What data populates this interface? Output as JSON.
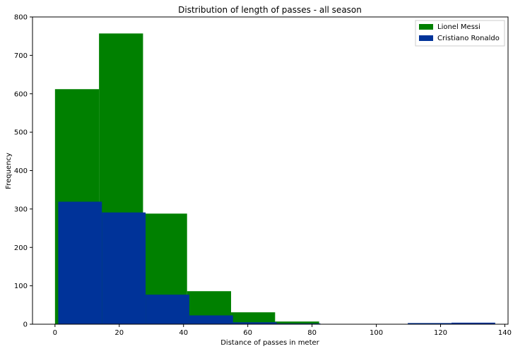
{
  "chart_data": {
    "type": "histogram",
    "title": "Distribution of length of passes - all season",
    "xlabel": "Distance of passes in meter",
    "ylabel": "Frequency",
    "xlim": [
      -7,
      141
    ],
    "ylim": [
      0,
      800
    ],
    "xticks": [
      0,
      20,
      40,
      60,
      80,
      100,
      120,
      140
    ],
    "yticks": [
      0,
      100,
      200,
      300,
      400,
      500,
      600,
      700,
      800
    ],
    "grid": false,
    "legend_position": "top-right",
    "series": [
      {
        "name": "Lionel Messi",
        "color": "#008000",
        "bins": [
          {
            "start": 0,
            "end": 13.7,
            "value": 612
          },
          {
            "start": 13.7,
            "end": 27.4,
            "value": 757
          },
          {
            "start": 27.4,
            "end": 41.1,
            "value": 288
          },
          {
            "start": 41.1,
            "end": 54.8,
            "value": 86
          },
          {
            "start": 54.8,
            "end": 68.5,
            "value": 31
          },
          {
            "start": 68.5,
            "end": 82.2,
            "value": 7
          },
          {
            "start": 82.2,
            "end": 95.9,
            "value": 0
          },
          {
            "start": 95.9,
            "end": 109.6,
            "value": 0
          },
          {
            "start": 109.6,
            "end": 123.3,
            "value": 0
          },
          {
            "start": 123.3,
            "end": 137,
            "value": 0
          }
        ]
      },
      {
        "name": "Cristiano Ronaldo",
        "color": "#003399",
        "bins": [
          {
            "start": 1,
            "end": 14.6,
            "value": 319
          },
          {
            "start": 14.6,
            "end": 28.2,
            "value": 291
          },
          {
            "start": 28.2,
            "end": 41.8,
            "value": 77
          },
          {
            "start": 41.8,
            "end": 55.4,
            "value": 23
          },
          {
            "start": 55.4,
            "end": 69,
            "value": 5
          },
          {
            "start": 69,
            "end": 82.6,
            "value": 2
          },
          {
            "start": 82.6,
            "end": 96.2,
            "value": 0
          },
          {
            "start": 96.2,
            "end": 109.8,
            "value": 0
          },
          {
            "start": 109.8,
            "end": 123.4,
            "value": 3
          },
          {
            "start": 123.4,
            "end": 137,
            "value": 4
          }
        ]
      }
    ]
  }
}
